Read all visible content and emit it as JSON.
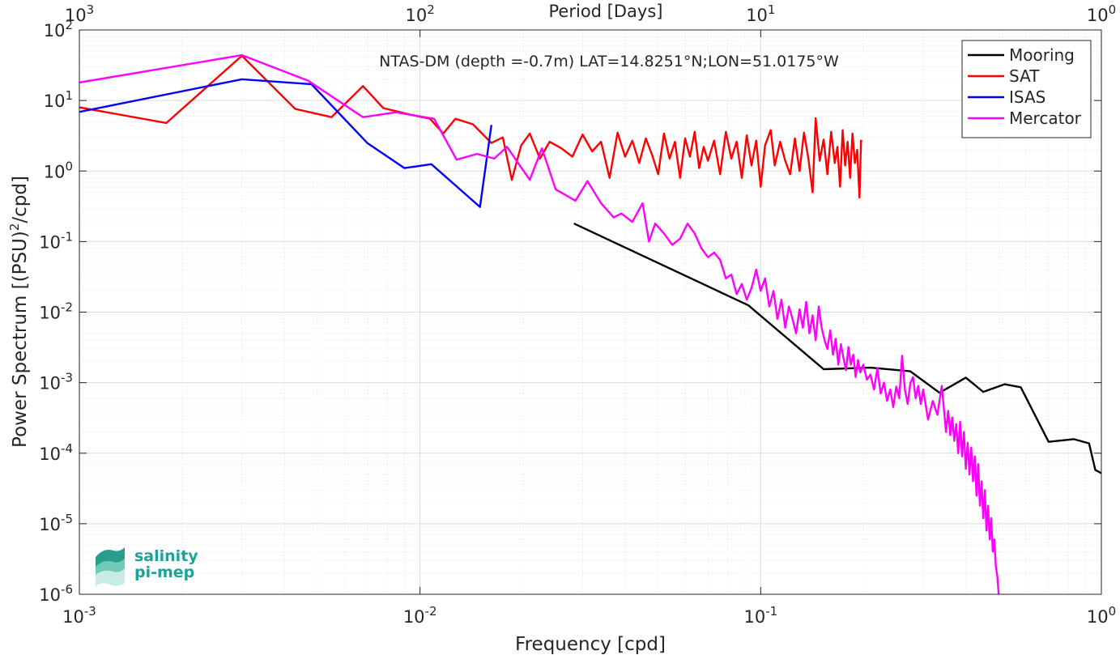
{
  "chart_data": {
    "type": "line",
    "title": "NTAS-DM (depth =-0.7m) LAT=14.8251°N;LON=51.0175°W",
    "xlabel": "Frequency [cpd]",
    "ylabel": "Power Spectrum [(PSU)^2/cpd]",
    "top_xlabel": "Period [Days]",
    "xscale": "log",
    "yscale": "log",
    "xlim": [
      0.001,
      1
    ],
    "ylim": [
      1e-06,
      100
    ],
    "grid": true,
    "legend_position": "top-right",
    "x_ticks": [
      "10^-3",
      "10^-2",
      "10^-1",
      "10^0"
    ],
    "y_ticks": [
      "10^-6",
      "10^-5",
      "10^-4",
      "10^-3",
      "10^-2",
      "10^-1",
      "10^0",
      "10^1",
      "10^2"
    ],
    "top_ticks": [
      "10^3",
      "10^2",
      "10^1",
      "10^0"
    ],
    "series": [
      {
        "name": "Mooring",
        "color": "#000000",
        "points": [
          [
            0.0283,
            0.18
          ],
          [
            0.092,
            0.0125
          ],
          [
            0.153,
            0.00155
          ],
          [
            0.21,
            0.00163
          ],
          [
            0.275,
            0.00145
          ],
          [
            0.335,
            0.00072
          ],
          [
            0.4,
            0.00118
          ],
          [
            0.45,
            0.00074
          ],
          [
            0.52,
            0.00095
          ],
          [
            0.58,
            0.00086
          ],
          [
            0.7,
            0.000145
          ],
          [
            0.83,
            0.000158
          ],
          [
            0.92,
            0.000138
          ],
          [
            0.96,
            5.8e-05
          ],
          [
            1.0,
            5.2e-05
          ]
        ]
      },
      {
        "name": "SAT",
        "color": "#ff0000",
        "points": [
          [
            0.001,
            8.0
          ],
          [
            0.0018,
            4.8
          ],
          [
            0.003,
            43
          ],
          [
            0.0043,
            7.6
          ],
          [
            0.0055,
            5.8
          ],
          [
            0.0068,
            16
          ],
          [
            0.0078,
            7.8
          ],
          [
            0.0095,
            6.2
          ],
          [
            0.0107,
            5.5
          ],
          [
            0.0117,
            3.4
          ],
          [
            0.0127,
            5.5
          ],
          [
            0.0143,
            4.6
          ],
          [
            0.0162,
            2.5
          ],
          [
            0.0175,
            3.0
          ],
          [
            0.0186,
            0.75
          ],
          [
            0.0198,
            2.3
          ],
          [
            0.021,
            3.4
          ],
          [
            0.0225,
            1.5
          ],
          [
            0.024,
            2.6
          ],
          [
            0.026,
            2.1
          ],
          [
            0.028,
            1.6
          ],
          [
            0.03,
            3.3
          ],
          [
            0.032,
            1.9
          ],
          [
            0.034,
            2.6
          ],
          [
            0.036,
            0.8
          ],
          [
            0.038,
            3.5
          ],
          [
            0.04,
            1.6
          ],
          [
            0.042,
            2.7
          ],
          [
            0.044,
            1.3
          ],
          [
            0.046,
            2.9
          ],
          [
            0.048,
            1.7
          ],
          [
            0.05,
            0.9
          ],
          [
            0.052,
            3.4
          ],
          [
            0.054,
            1.5
          ],
          [
            0.056,
            2.6
          ],
          [
            0.058,
            0.8
          ],
          [
            0.06,
            2.9
          ],
          [
            0.062,
            1.6
          ],
          [
            0.064,
            3.6
          ],
          [
            0.066,
            1.1
          ],
          [
            0.068,
            2.2
          ],
          [
            0.07,
            1.4
          ],
          [
            0.073,
            2.7
          ],
          [
            0.076,
            0.9
          ],
          [
            0.079,
            3.6
          ],
          [
            0.082,
            1.5
          ],
          [
            0.085,
            2.6
          ],
          [
            0.088,
            0.8
          ],
          [
            0.091,
            3.2
          ],
          [
            0.094,
            1.2
          ],
          [
            0.097,
            2.7
          ],
          [
            0.1,
            0.6
          ],
          [
            0.103,
            2.3
          ],
          [
            0.107,
            3.8
          ],
          [
            0.11,
            1.2
          ],
          [
            0.114,
            2.6
          ],
          [
            0.118,
            1.4
          ],
          [
            0.122,
            0.9
          ],
          [
            0.126,
            2.9
          ],
          [
            0.13,
            1.0
          ],
          [
            0.134,
            3.5
          ],
          [
            0.138,
            1.5
          ],
          [
            0.142,
            0.5
          ],
          [
            0.145,
            5.6
          ],
          [
            0.149,
            1.4
          ],
          [
            0.153,
            2.8
          ],
          [
            0.157,
            0.9
          ],
          [
            0.161,
            3.6
          ],
          [
            0.165,
            1.3
          ],
          [
            0.168,
            2.2
          ],
          [
            0.171,
            0.6
          ],
          [
            0.174,
            3.8
          ],
          [
            0.177,
            1.2
          ],
          [
            0.18,
            2.6
          ],
          [
            0.183,
            0.8
          ],
          [
            0.186,
            3.4
          ],
          [
            0.189,
            1.3
          ],
          [
            0.192,
            2.0
          ],
          [
            0.195,
            0.42
          ],
          [
            0.197,
            2.7
          ],
          [
            0.198,
            2.6
          ]
        ]
      },
      {
        "name": "ISAS",
        "color": "#0000ff",
        "points": [
          [
            0.001,
            6.9
          ],
          [
            0.003,
            20
          ],
          [
            0.0048,
            17
          ],
          [
            0.007,
            2.5
          ],
          [
            0.009,
            1.1
          ],
          [
            0.0108,
            1.25
          ],
          [
            0.015,
            0.31
          ],
          [
            0.0162,
            4.5
          ]
        ]
      },
      {
        "name": "Mercator",
        "color": "#ff00ff",
        "points": [
          [
            0.001,
            18
          ],
          [
            0.003,
            44
          ],
          [
            0.0047,
            19
          ],
          [
            0.0068,
            5.8
          ],
          [
            0.0085,
            6.8
          ],
          [
            0.011,
            5.5
          ],
          [
            0.0128,
            1.45
          ],
          [
            0.0147,
            1.75
          ],
          [
            0.0165,
            1.5
          ],
          [
            0.018,
            2.2
          ],
          [
            0.0194,
            1.3
          ],
          [
            0.021,
            0.75
          ],
          [
            0.0228,
            2.1
          ],
          [
            0.025,
            0.55
          ],
          [
            0.0286,
            0.38
          ],
          [
            0.031,
            0.72
          ],
          [
            0.034,
            0.35
          ],
          [
            0.037,
            0.22
          ],
          [
            0.039,
            0.25
          ],
          [
            0.042,
            0.19
          ],
          [
            0.045,
            0.35
          ],
          [
            0.047,
            0.1
          ],
          [
            0.049,
            0.18
          ],
          [
            0.052,
            0.13
          ],
          [
            0.055,
            0.09
          ],
          [
            0.058,
            0.11
          ],
          [
            0.061,
            0.18
          ],
          [
            0.064,
            0.13
          ],
          [
            0.067,
            0.08
          ],
          [
            0.07,
            0.06
          ],
          [
            0.073,
            0.07
          ],
          [
            0.076,
            0.055
          ],
          [
            0.079,
            0.03
          ],
          [
            0.082,
            0.034
          ],
          [
            0.085,
            0.018
          ],
          [
            0.088,
            0.025
          ],
          [
            0.091,
            0.015
          ],
          [
            0.094,
            0.022
          ],
          [
            0.097,
            0.04
          ],
          [
            0.1,
            0.02
          ],
          [
            0.103,
            0.03
          ],
          [
            0.106,
            0.012
          ],
          [
            0.109,
            0.02
          ],
          [
            0.112,
            0.008
          ],
          [
            0.115,
            0.015
          ],
          [
            0.118,
            0.006
          ],
          [
            0.121,
            0.012
          ],
          [
            0.124,
            0.008
          ],
          [
            0.127,
            0.005
          ],
          [
            0.13,
            0.011
          ],
          [
            0.133,
            0.006
          ],
          [
            0.136,
            0.014
          ],
          [
            0.139,
            0.005
          ],
          [
            0.142,
            0.009
          ],
          [
            0.145,
            0.004
          ],
          [
            0.148,
            0.012
          ],
          [
            0.151,
            0.006
          ],
          [
            0.154,
            0.004
          ],
          [
            0.157,
            0.003
          ],
          [
            0.16,
            0.0055
          ],
          [
            0.163,
            0.0025
          ],
          [
            0.166,
            0.0042
          ],
          [
            0.169,
            0.0018
          ],
          [
            0.172,
            0.0035
          ],
          [
            0.175,
            0.0022
          ],
          [
            0.178,
            0.0015
          ],
          [
            0.181,
            0.0032
          ],
          [
            0.184,
            0.0018
          ],
          [
            0.187,
            0.0025
          ],
          [
            0.19,
            0.0012
          ],
          [
            0.193,
            0.0021
          ],
          [
            0.196,
            0.0014
          ],
          [
            0.2,
            0.0018
          ],
          [
            0.205,
            0.0011
          ],
          [
            0.21,
            0.0013
          ],
          [
            0.215,
            0.0008
          ],
          [
            0.22,
            0.0016
          ],
          [
            0.225,
            0.0007
          ],
          [
            0.23,
            0.001
          ],
          [
            0.235,
            0.00055
          ],
          [
            0.24,
            0.0008
          ],
          [
            0.245,
            0.00045
          ],
          [
            0.25,
            0.00088
          ],
          [
            0.255,
            0.0006
          ],
          [
            0.26,
            0.0024
          ],
          [
            0.265,
            0.0008
          ],
          [
            0.27,
            0.0005
          ],
          [
            0.275,
            0.00098
          ],
          [
            0.28,
            0.0012
          ],
          [
            0.285,
            0.0006
          ],
          [
            0.29,
            0.0009
          ],
          [
            0.295,
            0.0005
          ],
          [
            0.3,
            0.0008
          ],
          [
            0.31,
            0.0003
          ],
          [
            0.32,
            0.00055
          ],
          [
            0.33,
            0.00035
          ],
          [
            0.34,
            0.0009
          ],
          [
            0.35,
            0.0002
          ],
          [
            0.355,
            0.0004
          ],
          [
            0.36,
            0.00018
          ],
          [
            0.365,
            0.00032
          ],
          [
            0.37,
            0.00015
          ],
          [
            0.375,
            0.00026
          ],
          [
            0.38,
            0.0001
          ],
          [
            0.385,
            0.00028
          ],
          [
            0.39,
            9e-05
          ],
          [
            0.395,
            0.0002
          ],
          [
            0.4,
            6e-05
          ],
          [
            0.405,
            0.00014
          ],
          [
            0.41,
            5e-05
          ],
          [
            0.415,
            0.00012
          ],
          [
            0.42,
            4e-05
          ],
          [
            0.425,
            9e-05
          ],
          [
            0.43,
            2.5e-05
          ],
          [
            0.435,
            7e-05
          ],
          [
            0.44,
            1.8e-05
          ],
          [
            0.445,
            4e-05
          ],
          [
            0.45,
            1.2e-05
          ],
          [
            0.455,
            3e-05
          ],
          [
            0.46,
            8e-06
          ],
          [
            0.465,
            1.8e-05
          ],
          [
            0.47,
            6e-06
          ],
          [
            0.475,
            1.2e-05
          ],
          [
            0.48,
            4e-06
          ],
          [
            0.485,
            6e-06
          ],
          [
            0.49,
            2.5e-06
          ],
          [
            0.495,
            1.8e-06
          ],
          [
            0.5,
            9.5e-07
          ]
        ]
      }
    ]
  },
  "logo": {
    "line1": "salinity",
    "line2": "pi-mep",
    "color": "#1aa39a"
  }
}
